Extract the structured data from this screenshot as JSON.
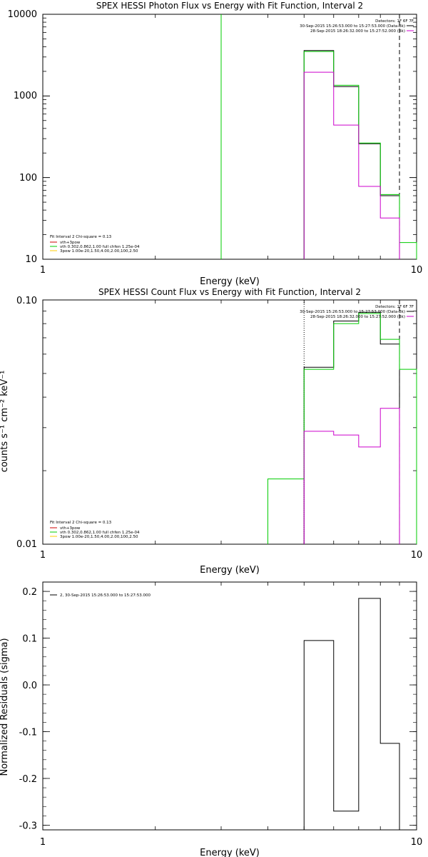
{
  "chart_data": [
    {
      "type": "line",
      "title": "SPEX HESSI Photon Flux vs Energy with Fit Function, Interval 2",
      "xlabel": "Energy (keV)",
      "ylabel": "",
      "xscale": "log",
      "yscale": "log",
      "xlim": [
        1,
        10
      ],
      "ylim": [
        10,
        10000
      ],
      "x_ticks": [
        "1",
        "10"
      ],
      "y_ticks": [
        "10",
        "100",
        "1000",
        "10000"
      ],
      "legend_top": [
        "Detectors: 1F 6F 7F",
        "30-Sep-2015 15:26:53.000 to 15:27:53.000 (Data-Bk)",
        "28-Sep-2015 18:26:32.000 to 15:27:52.000 (Bk)"
      ],
      "legend_bottom": [
        "Fit Interval 2   Chi-square = 0.13",
        "vth+3pow",
        "vth 0.302,0.862,1.00  full chfen 1.25e-04",
        "3pow 1.00e-20,1.50,4.00,2.00,100,2.50"
      ],
      "colors": {
        "data": "#000000",
        "total_fit": "#00cc00",
        "background": "#cc00cc",
        "pow": "#ffcc00"
      },
      "series": [
        {
          "name": "Data-Bk",
          "color": "#000000",
          "edges": [
            5.0,
            6.0,
            7.0,
            8.0,
            9.0
          ],
          "values": [
            3600,
            1300,
            260,
            60
          ]
        },
        {
          "name": "vth+3pow",
          "color": "#00cc00",
          "edges": [
            5.0,
            6.0,
            7.0,
            8.0,
            9.0,
            10.0
          ],
          "values": [
            3500,
            1350,
            265,
            62,
            16
          ]
        },
        {
          "name": "Bk",
          "color": "#cc00cc",
          "edges": [
            5.0,
            6.0,
            7.0,
            8.0,
            9.0
          ],
          "values": [
            1950,
            440,
            78,
            32
          ]
        }
      ],
      "green_vertical_x": 3.0,
      "dashed_vertical_x": 9.0
    },
    {
      "type": "line",
      "title": "SPEX HESSI Count Flux vs Energy with Fit Function, Interval 2",
      "xlabel": "Energy (keV)",
      "ylabel": "counts s⁻¹ cm⁻² keV⁻¹",
      "xscale": "log",
      "yscale": "log",
      "xlim": [
        1,
        10
      ],
      "ylim": [
        0.01,
        0.1
      ],
      "x_ticks": [
        "1",
        "10"
      ],
      "y_ticks": [
        "0.01",
        "0.10"
      ],
      "legend_top": [
        "Detectors: 1F 6F 7F",
        "30-Sep-2015 15:26:53.000 to 15:27:53.000 (Data-Bk)",
        "28-Sep-2015 18:26:32.000 to 15:27:52.000 (Bk)"
      ],
      "legend_bottom": [
        "Fit Interval 2   Chi-square = 0.13",
        "vth+3pow",
        "vth 0.302,0.862,1.00  full chfen 1.25e-04",
        "3pow 1.00e-20,1.50,4.00,2.00,100,2.50"
      ],
      "series": [
        {
          "name": "Data-Bk",
          "color": "#000000",
          "edges": [
            5.0,
            6.0,
            7.0,
            8.0,
            9.0
          ],
          "values": [
            0.053,
            0.082,
            0.089,
            0.066
          ]
        },
        {
          "name": "vth+3pow",
          "color": "#00cc00",
          "edges": [
            4.0,
            5.0,
            6.0,
            7.0,
            8.0,
            9.0,
            10.0
          ],
          "values": [
            0.0185,
            0.052,
            0.08,
            0.088,
            0.069,
            0.052
          ]
        },
        {
          "name": "Bk",
          "color": "#cc00cc",
          "edges": [
            5.0,
            6.0,
            7.0,
            8.0,
            9.0
          ],
          "values": [
            0.029,
            0.028,
            0.025,
            0.036
          ]
        }
      ],
      "dotted_vertical_x": 5.0,
      "dashed_vertical_x": 9.0
    },
    {
      "type": "line",
      "title": "",
      "xlabel": "Energy (keV)",
      "ylabel": "Normalized Residuals (sigma)",
      "xscale": "log",
      "yscale": "linear",
      "xlim": [
        1,
        10
      ],
      "ylim": [
        -0.31,
        0.22
      ],
      "x_ticks": [
        "1",
        "10"
      ],
      "y_ticks": [
        "0.2",
        "0.1",
        "0.0",
        "-0.1",
        "-0.2",
        "-0.3"
      ],
      "legend": [
        "2, 30-Sep-2015 15:26:53.000 to 15:27:53.000"
      ],
      "series": [
        {
          "name": "2, 30-Sep-2015 15:26:53.000 to 15:27:53.000",
          "color": "#000000",
          "edges": [
            5.0,
            6.0,
            7.0,
            8.0,
            9.0
          ],
          "values": [
            0.095,
            -0.27,
            0.185,
            -0.125
          ]
        }
      ]
    }
  ]
}
